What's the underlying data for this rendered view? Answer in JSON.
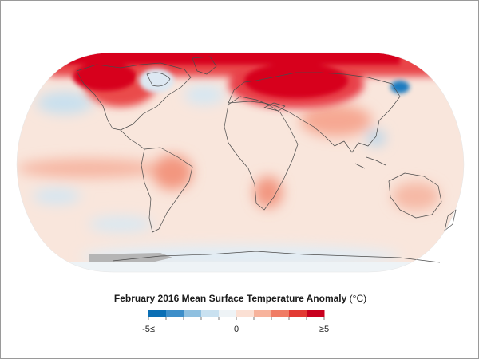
{
  "map": {
    "projection": "robinson",
    "variable": "surface-temperature-anomaly",
    "period": "February 2016",
    "colors": {
      "strong_warm": "#d7001c",
      "warm": "#f25a4e",
      "mild_warm": "#f9b2a0",
      "slight_warm": "#fde3d8",
      "neutral": "#f7f4f2",
      "slight_cool": "#d8e9f4",
      "cool": "#7fb7dc",
      "strong_cool": "#0a6eb4",
      "no_data": "#b5b5b5",
      "coastline": "#4a4a4a"
    }
  },
  "legend": {
    "title": "February 2016 Mean Surface Temperature Anomaly",
    "unit": "(°C)",
    "min_label": "-5≤",
    "mid_label": "0",
    "max_label": "≥5",
    "range": [
      -5,
      5
    ],
    "colors": [
      "#0a6eb4",
      "#3d8ec9",
      "#8fc0e0",
      "#c9e1f0",
      "#eef3f6",
      "#fbe0d4",
      "#f7b39c",
      "#f07c65",
      "#e23a33",
      "#c8001e"
    ]
  }
}
